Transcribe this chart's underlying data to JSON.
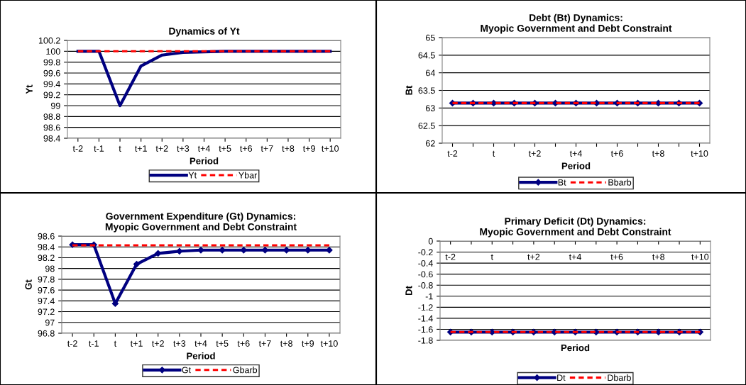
{
  "chart_data": [
    {
      "type": "line",
      "title": "Dynamics of Yt",
      "xlabel": "Period",
      "ylabel": "Yt",
      "categories": [
        "t-2",
        "t-1",
        "t",
        "t+1",
        "t+2",
        "t+3",
        "t+4",
        "t+5",
        "t+6",
        "t+7",
        "t+8",
        "t+9",
        "t+10"
      ],
      "ylim": [
        98.4,
        100.2
      ],
      "yticks": [
        98.4,
        98.6,
        98.8,
        99,
        99.2,
        99.4,
        99.6,
        99.8,
        100,
        100.2
      ],
      "grid": "y",
      "legend": "bottom",
      "series": [
        {
          "name": "Yt",
          "color": "#000080",
          "line_style": "solid",
          "marker": "none",
          "values": [
            100,
            100,
            99.0,
            99.73,
            99.93,
            99.98,
            99.99,
            100,
            100,
            100,
            100,
            100,
            100
          ]
        },
        {
          "name": "Ybar",
          "color": "#ff0000",
          "line_style": "dashed",
          "marker": "none",
          "values": [
            100,
            100,
            100,
            100,
            100,
            100,
            100,
            100,
            100,
            100,
            100,
            100,
            100
          ]
        }
      ]
    },
    {
      "type": "line",
      "title": "Debt (Bt) Dynamics:\nMyopic Government and Debt Constraint",
      "xlabel": "Period",
      "ylabel": "Bt",
      "categories": [
        "t-2",
        null,
        "t",
        null,
        "t+2",
        null,
        "t+4",
        null,
        "t+6",
        null,
        "t+8",
        null,
        "t+10"
      ],
      "ylim": [
        62,
        65
      ],
      "yticks": [
        62,
        62.5,
        63,
        63.5,
        64,
        64.5,
        65
      ],
      "grid": "y",
      "legend": "bottom",
      "series": [
        {
          "name": "Bt",
          "color": "#000080",
          "line_style": "solid",
          "marker": "diamond",
          "values": [
            63.14,
            63.14,
            63.14,
            63.14,
            63.14,
            63.14,
            63.14,
            63.14,
            63.14,
            63.14,
            63.14,
            63.14,
            63.14
          ]
        },
        {
          "name": "Bbarb",
          "color": "#ff0000",
          "line_style": "dashed",
          "marker": "none",
          "values": [
            63.14,
            63.14,
            63.14,
            63.14,
            63.14,
            63.14,
            63.14,
            63.14,
            63.14,
            63.14,
            63.14,
            63.14,
            63.14
          ]
        }
      ]
    },
    {
      "type": "line",
      "title": "Government Expenditure (Gt) Dynamics:\nMyopic Government and Debt Constraint",
      "xlabel": "Period",
      "ylabel": "Gt",
      "categories": [
        "t-2",
        "t-1",
        "t",
        "t+1",
        "t+2",
        "t+3",
        "t+4",
        "t+5",
        "t+6",
        "t+7",
        "t+8",
        "t+9",
        "t+10"
      ],
      "ylim": [
        96.8,
        98.6
      ],
      "yticks": [
        96.8,
        97,
        97.2,
        97.4,
        97.6,
        97.8,
        98,
        98.2,
        98.4,
        98.6
      ],
      "grid": "y",
      "legend": "bottom",
      "series": [
        {
          "name": "Gt",
          "color": "#000080",
          "line_style": "solid",
          "marker": "diamond",
          "values": [
            98.44,
            98.44,
            97.35,
            98.08,
            98.28,
            98.32,
            98.34,
            98.34,
            98.34,
            98.34,
            98.34,
            98.34,
            98.34
          ]
        },
        {
          "name": "Gbarb",
          "color": "#ff0000",
          "line_style": "dashed",
          "marker": "none",
          "values": [
            98.43,
            98.43,
            98.43,
            98.43,
            98.43,
            98.43,
            98.43,
            98.43,
            98.43,
            98.43,
            98.43,
            98.43,
            98.43
          ]
        }
      ]
    },
    {
      "type": "line",
      "title": "Primary Deficit (Dt) Dynamics:\nMyopic Government and Debt Constraint",
      "xlabel": "Period",
      "ylabel": "Dt",
      "categories": [
        "t-2",
        null,
        "t",
        null,
        "t+2",
        null,
        "t+4",
        null,
        "t+6",
        null,
        "t+8",
        null,
        "t+10"
      ],
      "ylim": [
        -1.8,
        0
      ],
      "yticks": [
        -1.8,
        -1.6,
        -1.4,
        -1.2,
        -1,
        -0.8,
        -0.6,
        -0.4,
        -0.2,
        0
      ],
      "grid": "y",
      "legend": "bottom",
      "series": [
        {
          "name": "Dt",
          "color": "#000080",
          "line_style": "solid",
          "marker": "diamond",
          "values": [
            -1.65,
            -1.65,
            -1.65,
            -1.65,
            -1.65,
            -1.65,
            -1.65,
            -1.65,
            -1.65,
            -1.65,
            -1.65,
            -1.65,
            -1.65
          ]
        },
        {
          "name": "Dbarb",
          "color": "#ff0000",
          "line_style": "dashed",
          "marker": "none",
          "values": [
            -1.65,
            -1.65,
            -1.65,
            -1.65,
            -1.65,
            -1.65,
            -1.65,
            -1.65,
            -1.65,
            -1.65,
            -1.65,
            -1.65,
            -1.65
          ]
        }
      ]
    }
  ]
}
